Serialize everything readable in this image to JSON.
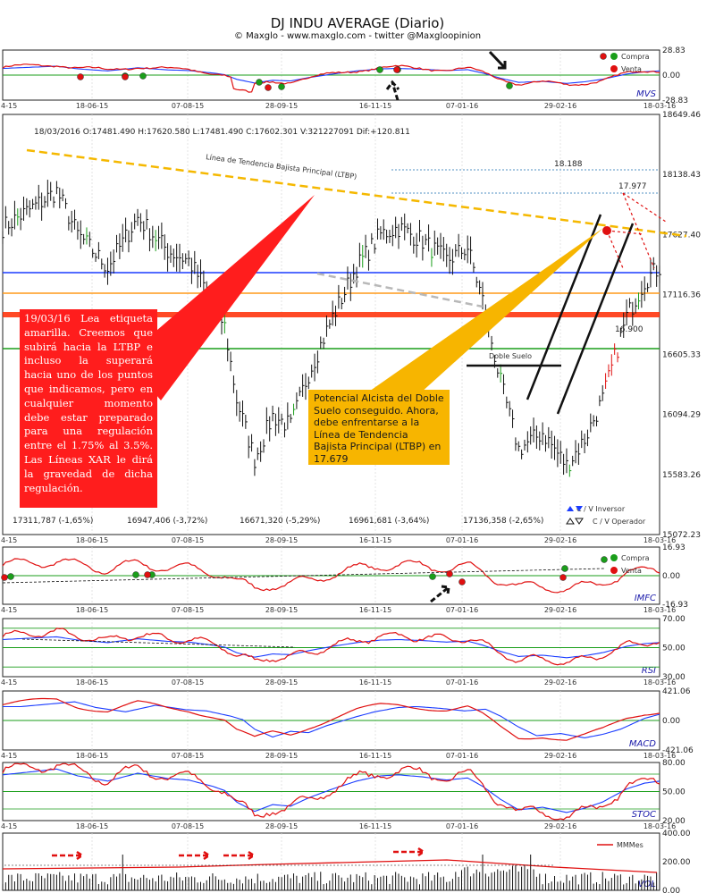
{
  "header": {
    "title": "DJ INDU AVERAGE (Diario)",
    "subtitle": "© Maxglo - www.maxglo.com - twitter @Maxgloopinion"
  },
  "ohlc_line": "18/03/2016  O:17481.490  H:17620.580  L:17481.490  C:17602.301  V:321227091  Dif:+120.811",
  "dates": [
    "4-15",
    "18-06-15",
    "07-08-15",
    "28-09-15",
    "16-11-15",
    "07-01-16",
    "29-02-16",
    "18-03-16"
  ],
  "colors": {
    "buy": "#1a9e1a",
    "sell": "#e01010",
    "ltbp": "#f5b800",
    "blue_level": "#1a3cff",
    "orange_level": "#ff9a1a",
    "red_level": "#ff2a00",
    "green_level": "#1a9e1a",
    "note_red": "#ff1d1d",
    "note_orange": "#f7b500"
  },
  "chart_data": [
    {
      "type": "line",
      "panel": "MVS",
      "ylim": [
        -28.83,
        28.83
      ],
      "ticks": [
        "28.83",
        "0.00",
        "-28.83"
      ],
      "legend": [
        "Compra",
        "Venta"
      ],
      "label": "MVS"
    },
    {
      "type": "bar",
      "panel": "price",
      "ylim": [
        15072.23,
        18649.46
      ],
      "ticks": [
        "18649.46",
        "18138.43",
        "17627.40",
        "17116.36",
        "16605.33",
        "16094.29",
        "15583.26",
        "15072.23"
      ],
      "levels": [
        "18.188",
        "17.977",
        "16.900"
      ],
      "ltbp_label": "Línea de Tendencia Bajista Principal (LTBP)",
      "doble_suelo_label": "Doble Suelo",
      "bottom_values": [
        {
          "text": "17311,787 (-1,65%)",
          "color": "#1a3cff"
        },
        {
          "text": "16947,406 (-3,72%)",
          "color": "#e01010"
        },
        {
          "text": "16671,320 (-5,29%)",
          "color": "#1a9e1a"
        },
        {
          "text": "16961,681 (-3,64%)",
          "color": "#ff9a1a"
        },
        {
          "text": "17136,358 (-2,65%)",
          "color": "#f5b800"
        }
      ],
      "cv_legend": [
        "C / V Inversor",
        "C / V Operador"
      ]
    },
    {
      "type": "line",
      "panel": "IMFC",
      "ylim": [
        -16.93,
        16.93
      ],
      "ticks": [
        "16.93",
        "0.00",
        "-16.93"
      ],
      "legend": [
        "Compra",
        "Venta"
      ],
      "label": "IMFC"
    },
    {
      "type": "line",
      "panel": "RSI",
      "ylim": [
        20,
        80
      ],
      "ticks": [
        "70.00",
        "50.00",
        "30.00"
      ],
      "label": "RSI"
    },
    {
      "type": "line",
      "panel": "MACD",
      "ylim": [
        -421.06,
        421.06
      ],
      "ticks": [
        "421.06",
        "0.00",
        "-421.06"
      ],
      "label": "MACD"
    },
    {
      "type": "line",
      "panel": "STOC",
      "ylim": [
        0,
        100
      ],
      "ticks": [
        "80.00",
        "50.00",
        "20.00"
      ],
      "label": "STOC"
    },
    {
      "type": "bar",
      "panel": "VOL",
      "ylim": [
        0,
        400
      ],
      "ticks": [
        "400.00",
        "200.00",
        "0.00"
      ],
      "legend": [
        "MMMes"
      ],
      "label": "VOL"
    }
  ],
  "notes": {
    "red": "19/03/16 Lea etiqueta amarilla. Creemos que subirá hacia la LTBP e incluso la superará hacia uno de los puntos que indicamos, pero en cualquier momento debe estar preparado para una regulación entre el 1.75% al 3.5%. Las Líneas XAR le dirá la gravedad de dicha regulación.",
    "orange": "Potencial Alcista del Doble Suelo conseguido. Ahora, debe enfrentarse a la Línea de Tendencia Bajista Principal (LTBP) en 17.679"
  }
}
